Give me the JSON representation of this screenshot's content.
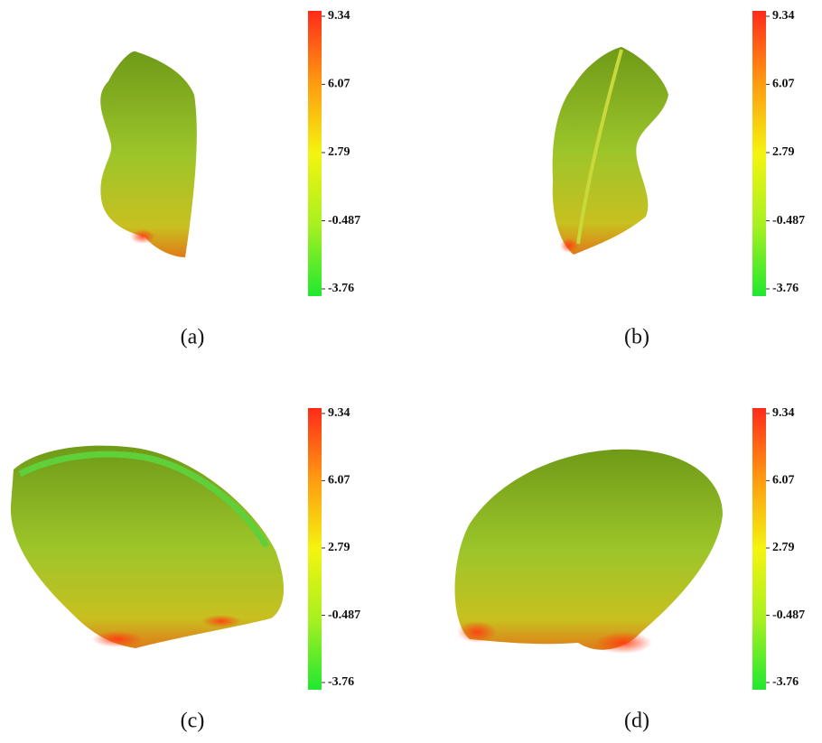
{
  "panels": [
    {
      "label": "(a)",
      "colorbar": {
        "lim": [
          -3.76,
          9.34
        ],
        "ticks": [
          9.34,
          6.07,
          2.79,
          -0.487,
          -3.76
        ]
      }
    },
    {
      "label": "(b)",
      "colorbar": {
        "lim": [
          -3.76,
          9.34
        ],
        "ticks": [
          9.34,
          6.07,
          2.79,
          -0.487,
          -3.76
        ]
      }
    },
    {
      "label": "(c)",
      "colorbar": {
        "lim": [
          -3.76,
          9.34
        ],
        "ticks": [
          9.34,
          6.07,
          2.79,
          -0.487,
          -3.76
        ]
      }
    },
    {
      "label": "(d)",
      "colorbar": {
        "lim": [
          -3.76,
          9.34
        ],
        "ticks": [
          9.34,
          6.07,
          2.79,
          -0.487,
          -3.76
        ]
      }
    }
  ]
}
